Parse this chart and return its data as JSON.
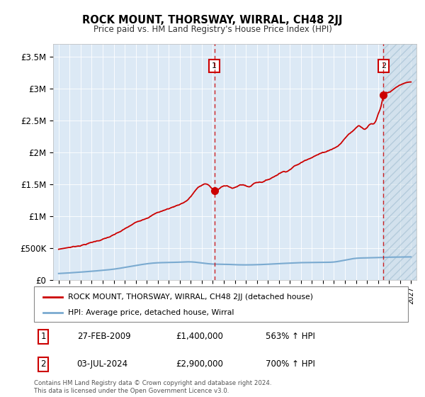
{
  "title": "ROCK MOUNT, THORSWAY, WIRRAL, CH48 2JJ",
  "subtitle": "Price paid vs. HM Land Registry's House Price Index (HPI)",
  "plot_bg_color": "#dce9f5",
  "ylim": [
    0,
    3700000
  ],
  "yticks": [
    0,
    500000,
    1000000,
    1500000,
    2000000,
    2500000,
    3000000,
    3500000
  ],
  "ytick_labels": [
    "£0",
    "£500K",
    "£1M",
    "£1.5M",
    "£2M",
    "£2.5M",
    "£3M",
    "£3.5M"
  ],
  "sale1_date_num": 2009.15,
  "sale1_price": 1400000,
  "sale1_date_str": "27-FEB-2009",
  "sale1_pct": "563% ↑ HPI",
  "sale2_date_num": 2024.5,
  "sale2_price": 2900000,
  "sale2_date_str": "03-JUL-2024",
  "sale2_pct": "700% ↑ HPI",
  "red_line_color": "#cc0000",
  "blue_line_color": "#7aaad0",
  "legend1_text": "ROCK MOUNT, THORSWAY, WIRRAL, CH48 2JJ (detached house)",
  "legend2_text": "HPI: Average price, detached house, Wirral",
  "footer": "Contains HM Land Registry data © Crown copyright and database right 2024.\nThis data is licensed under the Open Government Licence v3.0."
}
